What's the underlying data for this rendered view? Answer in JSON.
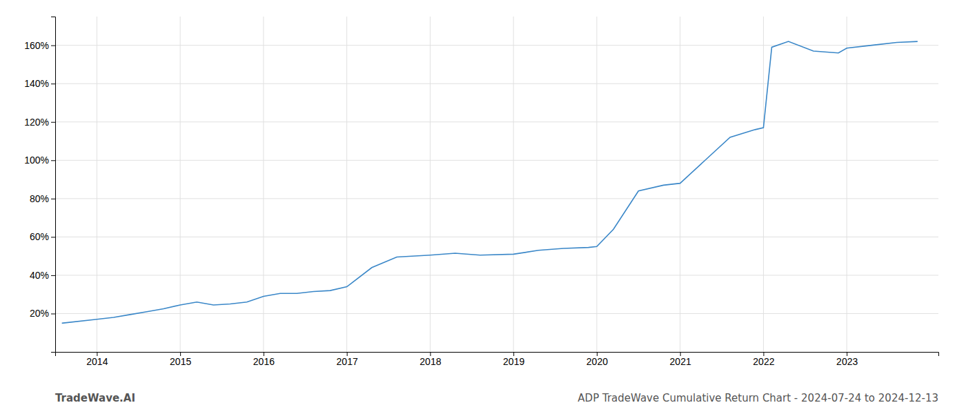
{
  "chart_data": {
    "type": "line",
    "title": "ADP TradeWave Cumulative Return Chart - 2024-07-24 to 2024-12-13",
    "annotations": [
      "TradeWave.AI"
    ],
    "color": "#3a87c8",
    "grid": true,
    "x": [
      2013.58,
      2014.0,
      2014.2,
      2014.4,
      2014.6,
      2014.8,
      2015.0,
      2015.2,
      2015.4,
      2015.6,
      2015.8,
      2016.0,
      2016.2,
      2016.4,
      2016.6,
      2016.8,
      2017.0,
      2017.3,
      2017.6,
      2018.0,
      2018.3,
      2018.6,
      2019.0,
      2019.3,
      2019.6,
      2019.9,
      2020.0,
      2020.2,
      2020.5,
      2020.8,
      2021.0,
      2021.3,
      2021.6,
      2021.9,
      2022.0,
      2022.1,
      2022.3,
      2022.6,
      2022.9,
      2023.0,
      2023.3,
      2023.6,
      2023.85
    ],
    "values": [
      15.0,
      17.0,
      18.0,
      19.5,
      21.0,
      22.5,
      24.5,
      26.0,
      24.5,
      25.0,
      26.0,
      29.0,
      30.5,
      30.5,
      31.5,
      32.0,
      34.0,
      44.0,
      49.5,
      50.5,
      51.5,
      50.5,
      51.0,
      53.0,
      54.0,
      54.5,
      55.0,
      64.0,
      84.0,
      87.0,
      88.0,
      100.0,
      112.0,
      116.0,
      117.0,
      159.0,
      162.0,
      157.0,
      156.0,
      158.5,
      160.0,
      161.5,
      162.0
    ],
    "xlim": [
      2013.5,
      2024.1
    ],
    "ylim": [
      0,
      175
    ],
    "xticks": [
      2014,
      2015,
      2016,
      2017,
      2018,
      2019,
      2020,
      2021,
      2022,
      2023
    ],
    "yticks": [
      {
        "value": 20,
        "label": "20%"
      },
      {
        "value": 40,
        "label": "40%"
      },
      {
        "value": 60,
        "label": "60%"
      },
      {
        "value": 80,
        "label": "80%"
      },
      {
        "value": 100,
        "label": "100%"
      },
      {
        "value": 120,
        "label": "120%"
      },
      {
        "value": 140,
        "label": "140%"
      },
      {
        "value": 160,
        "label": "160%"
      }
    ]
  }
}
